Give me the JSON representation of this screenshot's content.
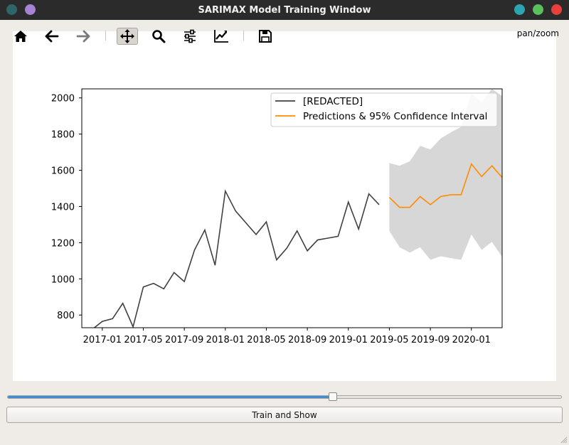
{
  "window": {
    "title": "SARIMAX Model Training Window",
    "controls": [
      {
        "name": "window-button-teal",
        "color": "#2aa6b3"
      },
      {
        "name": "window-button-green",
        "color": "#5ac05a"
      },
      {
        "name": "window-button-red",
        "color": "#e9403c"
      }
    ],
    "left_dots": [
      {
        "name": "window-dot-dark-teal",
        "color": "#2f6468"
      },
      {
        "name": "window-dot-purple",
        "color": "#a783d6"
      }
    ]
  },
  "toolbar": {
    "items": [
      {
        "name": "home-icon"
      },
      {
        "name": "back-arrow-icon"
      },
      {
        "name": "forward-arrow-icon"
      },
      {
        "name": "pan-move-icon",
        "active": true
      },
      {
        "name": "zoom-magnifier-icon"
      },
      {
        "name": "subplots-sliders-icon"
      },
      {
        "name": "edit-axis-icon"
      },
      {
        "name": "save-floppy-icon"
      }
    ],
    "mode_label": "pan/zoom"
  },
  "slider": {
    "value_fraction": 0.587,
    "fill_color": "#3c8ed8"
  },
  "train_button": {
    "label": "Train and Show"
  },
  "chart_data": {
    "type": "line",
    "xlim": [
      "2016-11-01",
      "2020-04-01"
    ],
    "ylim": [
      730,
      2050
    ],
    "x_ticks": [
      "2017-01",
      "2017-05",
      "2017-09",
      "2018-01",
      "2018-05",
      "2018-09",
      "2019-01",
      "2019-05",
      "2019-09",
      "2020-01"
    ],
    "y_ticks": [
      800,
      1000,
      1200,
      1400,
      1600,
      1800,
      2000
    ],
    "legend_position": "top-right",
    "grid": false,
    "series": [
      {
        "name": "[REDACTED]",
        "color": "#404040",
        "x": [
          "2016-12",
          "2017-01",
          "2017-02",
          "2017-03",
          "2017-04",
          "2017-05",
          "2017-06",
          "2017-07",
          "2017-08",
          "2017-09",
          "2017-10",
          "2017-11",
          "2017-12",
          "2018-01",
          "2018-02",
          "2018-03",
          "2018-04",
          "2018-05",
          "2018-06",
          "2018-07",
          "2018-08",
          "2018-09",
          "2018-10",
          "2018-11",
          "2018-12",
          "2019-01",
          "2019-02",
          "2019-03",
          "2019-04"
        ],
        "values": [
          720,
          765,
          780,
          865,
          735,
          955,
          975,
          945,
          1035,
          985,
          1160,
          1270,
          1075,
          1485,
          1375,
          1310,
          1245,
          1315,
          1105,
          1170,
          1265,
          1155,
          1215,
          1225,
          1235,
          1425,
          1275,
          1470,
          1410
        ]
      },
      {
        "name": "Predictions & 95% Confidence Interval",
        "color": "#ff8c00",
        "x": [
          "2019-05",
          "2019-06",
          "2019-07",
          "2019-08",
          "2019-09",
          "2019-10",
          "2019-11",
          "2019-12",
          "2020-01",
          "2020-02",
          "2020-03",
          "2020-04"
        ],
        "values": [
          1450,
          1395,
          1395,
          1455,
          1410,
          1455,
          1465,
          1465,
          1635,
          1565,
          1625,
          1560
        ],
        "ci_lower": [
          1265,
          1175,
          1145,
          1175,
          1105,
          1125,
          1115,
          1105,
          1245,
          1160,
          1205,
          1120
        ],
        "ci_upper": [
          1640,
          1625,
          1650,
          1735,
          1715,
          1775,
          1810,
          1840,
          2025,
          1975,
          2050,
          2010
        ],
        "ci_color": "#d3d3d3"
      }
    ]
  }
}
